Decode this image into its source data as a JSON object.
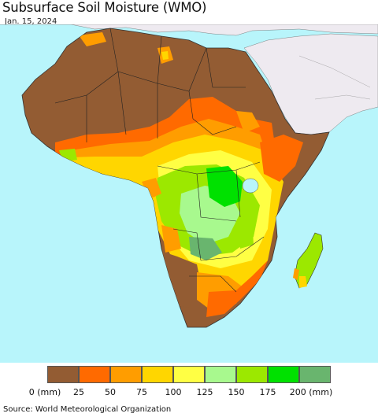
{
  "title": "Subsurface Soil Moisture (WMO)",
  "date": "Jan. 15, 2024",
  "source": "Source: World Meteorological Organization",
  "legend": {
    "colors": [
      "#935c33",
      "#ff6a00",
      "#ff9d00",
      "#ffd600",
      "#ffff44",
      "#a8f98e",
      "#9ce800",
      "#00e100",
      "#69b56e"
    ],
    "ticks": [
      "0 (mm)",
      "25",
      "50",
      "75",
      "100",
      "125",
      "150",
      "175",
      "200 (mm)"
    ]
  },
  "colors": {
    "ocean": "#b8f5fb",
    "other_land": "#eeeaf0",
    "no_data": "#ffffff"
  }
}
